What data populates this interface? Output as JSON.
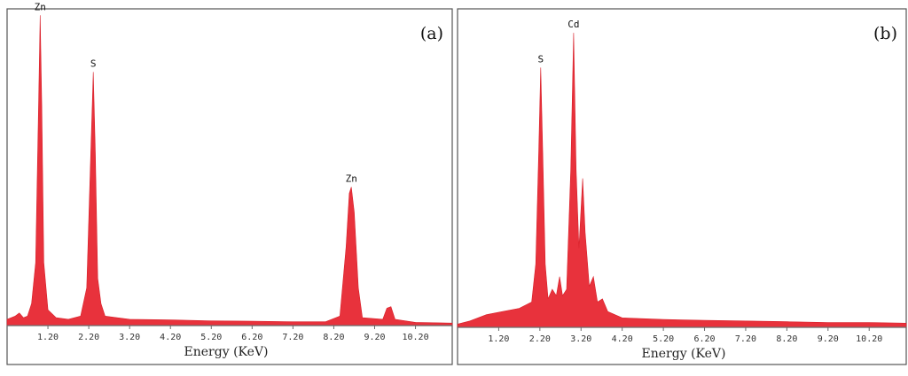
{
  "chart_data": [
    {
      "type": "area",
      "panel_label": "(a)",
      "xlabel": "Energy (KeV)",
      "ylabel": "",
      "xlim": [
        0.2,
        11.1
      ],
      "ylim": [
        0,
        1.0
      ],
      "grid": false,
      "x_ticks": [
        1.2,
        2.2,
        3.2,
        4.2,
        5.2,
        6.2,
        7.2,
        8.2,
        9.2,
        10.2
      ],
      "x_tick_labels": [
        "1.20",
        "2.20",
        "3.20",
        "4.20",
        "5.20",
        "6.20",
        "7.20",
        "8.20",
        "9.20",
        "10.20"
      ],
      "series": [
        {
          "values": [
            {
              "x": 0.2,
              "y": 0.02
            },
            {
              "x": 0.4,
              "y": 0.03
            },
            {
              "x": 0.5,
              "y": 0.04
            },
            {
              "x": 0.6,
              "y": 0.025
            },
            {
              "x": 0.7,
              "y": 0.03
            },
            {
              "x": 0.8,
              "y": 0.07
            },
            {
              "x": 0.9,
              "y": 0.2
            },
            {
              "x": 0.97,
              "y": 0.7
            },
            {
              "x": 1.01,
              "y": 0.985
            },
            {
              "x": 1.05,
              "y": 0.7
            },
            {
              "x": 1.1,
              "y": 0.2
            },
            {
              "x": 1.2,
              "y": 0.05
            },
            {
              "x": 1.4,
              "y": 0.025
            },
            {
              "x": 1.7,
              "y": 0.02
            },
            {
              "x": 2.0,
              "y": 0.03
            },
            {
              "x": 2.15,
              "y": 0.12
            },
            {
              "x": 2.25,
              "y": 0.55
            },
            {
              "x": 2.31,
              "y": 0.805
            },
            {
              "x": 2.36,
              "y": 0.55
            },
            {
              "x": 2.42,
              "y": 0.15
            },
            {
              "x": 2.5,
              "y": 0.07
            },
            {
              "x": 2.6,
              "y": 0.03
            },
            {
              "x": 3.2,
              "y": 0.02
            },
            {
              "x": 4.2,
              "y": 0.018
            },
            {
              "x": 5.2,
              "y": 0.015
            },
            {
              "x": 6.2,
              "y": 0.014
            },
            {
              "x": 7.2,
              "y": 0.012
            },
            {
              "x": 8.0,
              "y": 0.012
            },
            {
              "x": 8.35,
              "y": 0.03
            },
            {
              "x": 8.5,
              "y": 0.25
            },
            {
              "x": 8.58,
              "y": 0.42
            },
            {
              "x": 8.63,
              "y": 0.44
            },
            {
              "x": 8.7,
              "y": 0.36
            },
            {
              "x": 8.8,
              "y": 0.12
            },
            {
              "x": 8.9,
              "y": 0.025
            },
            {
              "x": 9.4,
              "y": 0.02
            },
            {
              "x": 9.5,
              "y": 0.055
            },
            {
              "x": 9.6,
              "y": 0.06
            },
            {
              "x": 9.7,
              "y": 0.02
            },
            {
              "x": 10.2,
              "y": 0.01
            },
            {
              "x": 11.1,
              "y": 0.008
            }
          ]
        }
      ],
      "annotations": [
        {
          "text": "Zn",
          "x": 1.01,
          "y": 0.985
        },
        {
          "text": "S",
          "x": 2.31,
          "y": 0.805
        },
        {
          "text": "Zn",
          "x": 8.63,
          "y": 0.44
        }
      ]
    },
    {
      "type": "area",
      "panel_label": "(b)",
      "xlabel": "Energy (KeV)",
      "ylabel": "",
      "xlim": [
        0.2,
        11.1
      ],
      "ylim": [
        0,
        1.0
      ],
      "grid": false,
      "x_ticks": [
        1.2,
        2.2,
        3.2,
        4.2,
        5.2,
        6.2,
        7.2,
        8.2,
        9.2,
        10.2
      ],
      "x_tick_labels": [
        "1.20",
        "2.20",
        "3.20",
        "4.20",
        "5.20",
        "6.20",
        "7.20",
        "8.20",
        "9.20",
        "10.20"
      ],
      "series": [
        {
          "values": [
            {
              "x": 0.2,
              "y": 0.01
            },
            {
              "x": 0.5,
              "y": 0.02
            },
            {
              "x": 0.9,
              "y": 0.04
            },
            {
              "x": 1.3,
              "y": 0.05
            },
            {
              "x": 1.7,
              "y": 0.06
            },
            {
              "x": 2.0,
              "y": 0.08
            },
            {
              "x": 2.1,
              "y": 0.2
            },
            {
              "x": 2.17,
              "y": 0.55
            },
            {
              "x": 2.22,
              "y": 0.82
            },
            {
              "x": 2.27,
              "y": 0.55
            },
            {
              "x": 2.33,
              "y": 0.2
            },
            {
              "x": 2.4,
              "y": 0.09
            },
            {
              "x": 2.5,
              "y": 0.12
            },
            {
              "x": 2.6,
              "y": 0.1
            },
            {
              "x": 2.68,
              "y": 0.16
            },
            {
              "x": 2.75,
              "y": 0.1
            },
            {
              "x": 2.85,
              "y": 0.12
            },
            {
              "x": 2.95,
              "y": 0.5
            },
            {
              "x": 3.02,
              "y": 0.93
            },
            {
              "x": 3.08,
              "y": 0.5
            },
            {
              "x": 3.15,
              "y": 0.25
            },
            {
              "x": 3.24,
              "y": 0.47
            },
            {
              "x": 3.3,
              "y": 0.3
            },
            {
              "x": 3.4,
              "y": 0.13
            },
            {
              "x": 3.5,
              "y": 0.16
            },
            {
              "x": 3.6,
              "y": 0.08
            },
            {
              "x": 3.72,
              "y": 0.09
            },
            {
              "x": 3.85,
              "y": 0.05
            },
            {
              "x": 4.2,
              "y": 0.03
            },
            {
              "x": 5.2,
              "y": 0.025
            },
            {
              "x": 6.2,
              "y": 0.022
            },
            {
              "x": 7.2,
              "y": 0.02
            },
            {
              "x": 8.2,
              "y": 0.018
            },
            {
              "x": 9.2,
              "y": 0.015
            },
            {
              "x": 10.2,
              "y": 0.015
            },
            {
              "x": 11.1,
              "y": 0.013
            }
          ]
        }
      ],
      "annotations": [
        {
          "text": "S",
          "x": 2.22,
          "y": 0.82
        },
        {
          "text": "Cd",
          "x": 3.02,
          "y": 0.93
        }
      ]
    }
  ]
}
